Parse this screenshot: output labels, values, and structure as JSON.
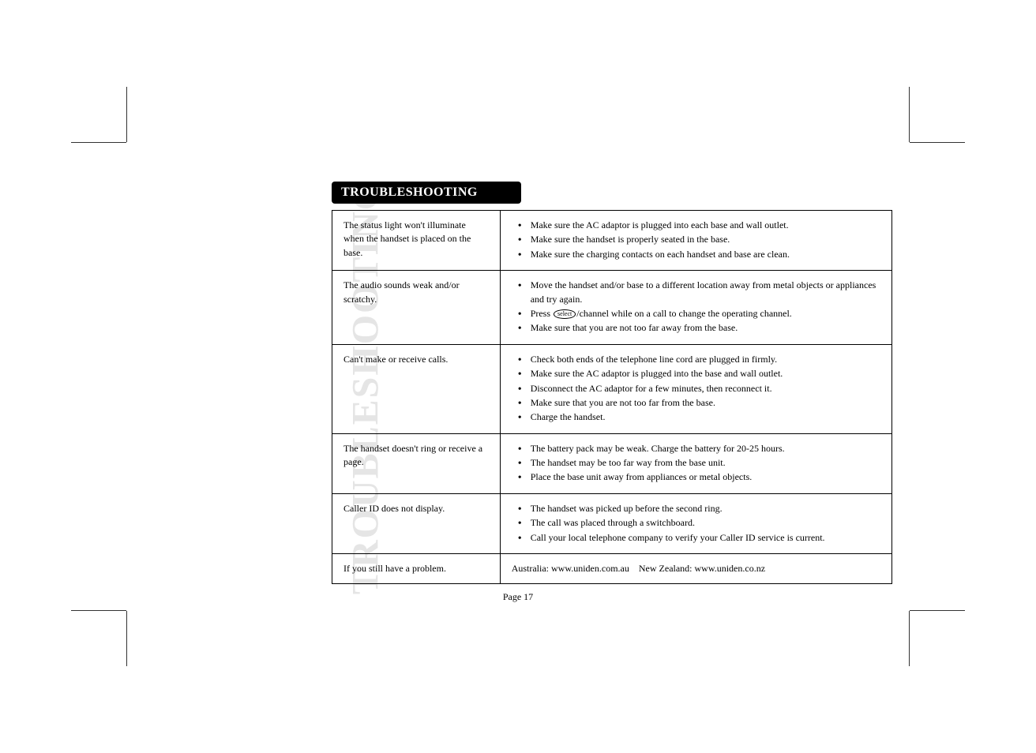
{
  "side_title": "TROUBLESHOOTING",
  "header": "TROUBLESHOOTING",
  "rows": [
    {
      "issue": "The status light won't illuminate when the handset is placed on the base.",
      "items": [
        "Make sure the AC adaptor is plugged into each base and wall outlet.",
        "Make sure the handset is properly seated in the base.",
        "Make sure the charging contacts on each handset and base are clean."
      ]
    },
    {
      "issue": "The audio sounds weak and/or scratchy.",
      "items": [
        "Move the handset and/or base to a different location away from metal objects or appliances and try again.",
        "",
        "Make sure that you are not too far away from the base."
      ],
      "special_index": 1,
      "special_prefix": "Press ",
      "special_btn": "select",
      "special_suffix": "/channel while on a call to change the operating channel."
    },
    {
      "issue": "Can't make or receive calls.",
      "items": [
        "Check both ends of the telephone line cord are plugged in firmly.",
        "Make sure the AC adaptor is plugged into the base and wall outlet.",
        "Disconnect the AC adaptor for a few minutes, then reconnect it.",
        "Make sure that you are not too far from the base.",
        "Charge the handset."
      ]
    },
    {
      "issue": "The handset doesn't ring or receive a page.",
      "items": [
        "The battery pack may be weak. Charge the battery for 20-25 hours.",
        "The handset may be too far way from the base unit.",
        "Place the base unit away from appliances or metal objects."
      ]
    },
    {
      "issue": "Caller ID does not display.",
      "items": [
        "The handset was picked up before the second ring.",
        "The call was placed through a switchboard.",
        "Call your local telephone company to verify your Caller ID service is current."
      ]
    }
  ],
  "footer": {
    "issue": "If you still have a problem.",
    "text": "Australia: www.uniden.com.au New Zealand: www.uniden.co.nz"
  },
  "page_number": "Page 17"
}
